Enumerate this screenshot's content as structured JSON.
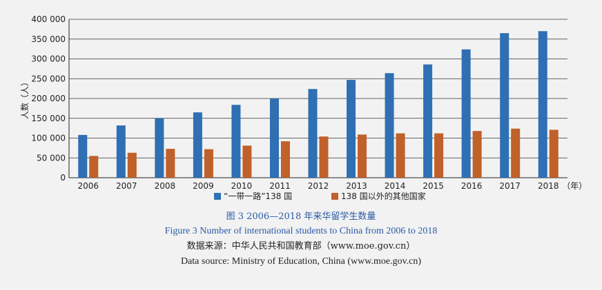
{
  "chart_data": {
    "type": "bar",
    "title": "",
    "xlabel": "",
    "ylabel": "人数（人）",
    "x_unit": "（年）",
    "ylim": [
      0,
      400000
    ],
    "y_ticks": [
      "0",
      "50 000",
      "100 000",
      "150 000",
      "200 000",
      "250 000",
      "300 000",
      "350 000",
      "400 000"
    ],
    "grid": "horizontal",
    "legend_position": "bottom",
    "categories": [
      "2006",
      "2007",
      "2008",
      "2009",
      "2010",
      "2011",
      "2012",
      "2013",
      "2014",
      "2015",
      "2016",
      "2017",
      "2018"
    ],
    "series": [
      {
        "name": "“一带一路”138 国",
        "color": "#2f6fb3",
        "values": [
          108000,
          132000,
          150000,
          165000,
          184000,
          200000,
          224000,
          247000,
          264000,
          286000,
          324000,
          365000,
          370000
        ]
      },
      {
        "name": "138 国以外的其他国家",
        "color": "#c0602a",
        "values": [
          55000,
          63000,
          73000,
          72000,
          81000,
          92000,
          104000,
          109000,
          112000,
          112000,
          118000,
          124000,
          121000
        ]
      }
    ]
  },
  "captions": {
    "zh_title": "图 3    2006—2018 年来华留学生数量",
    "en_title": "Figure 3    Number of international students to China from 2006 to 2018",
    "zh_source": "数据来源：中华人民共和国教育部（www.moe.gov.cn）",
    "en_source": "Data source: Ministry of Education, China (www.moe.gov.cn)"
  },
  "colors": {
    "axis": "#222222",
    "grid": "#333333",
    "caption_blue": "#2a5aa6",
    "background": "#f2f2f2"
  }
}
